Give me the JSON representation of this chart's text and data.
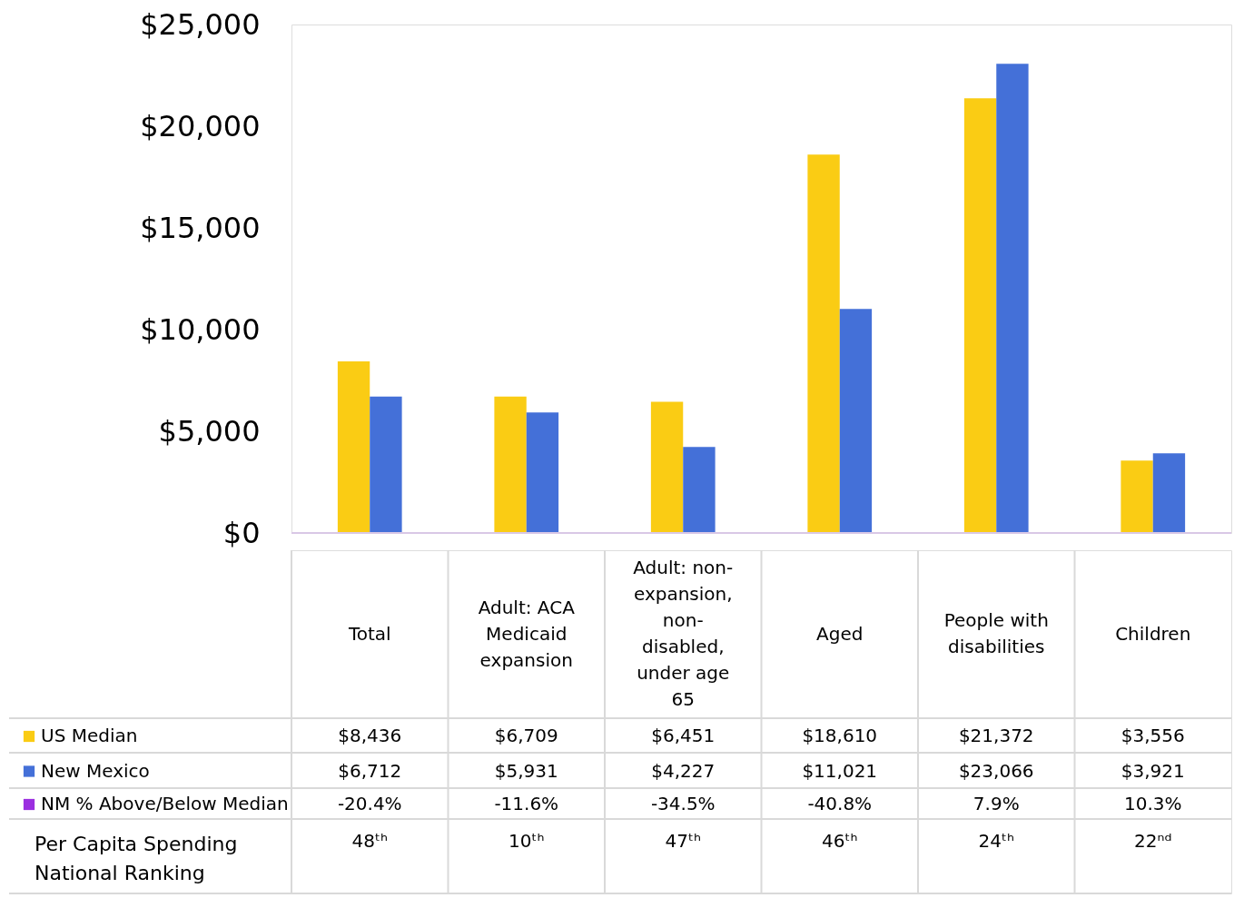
{
  "chart_data": {
    "type": "bar",
    "categories": [
      "Total",
      "Adult: ACA Medicaid expansion",
      "Adult: non-expansion, non-disabled, under age 65",
      "Aged",
      "People with disabilities",
      "Children"
    ],
    "series": [
      {
        "name": "US Median",
        "color": "#facc14",
        "values": [
          8436,
          6709,
          6451,
          18610,
          21372,
          3556
        ],
        "value_labels": [
          "$8,436",
          "$6,709",
          "$6,451",
          "$18,610",
          "$21,372",
          "$3,556"
        ]
      },
      {
        "name": "New Mexico",
        "color": "#4470d8",
        "values": [
          6712,
          5931,
          4227,
          11021,
          23066,
          3921
        ],
        "value_labels": [
          "$6,712",
          "$5,931",
          "$4,227",
          "$11,021",
          "$23,066",
          "$3,921"
        ]
      },
      {
        "name": "NM % Above/Below Median",
        "color": "#9b2fe0",
        "values": [
          null,
          null,
          null,
          null,
          null,
          null
        ],
        "value_labels": [
          "-20.4%",
          "-11.6%",
          "-34.5%",
          "-40.8%",
          "7.9%",
          "10.3%"
        ]
      }
    ],
    "ylim": [
      0,
      25000
    ],
    "yticks": [
      {
        "value": 0,
        "label": "$0"
      },
      {
        "value": 5000,
        "label": "$5,000"
      },
      {
        "value": 10000,
        "label": "$10,000"
      },
      {
        "value": 15000,
        "label": "$15,000"
      },
      {
        "value": 20000,
        "label": "$20,000"
      },
      {
        "value": 25000,
        "label": "$25,000"
      }
    ],
    "grid": false,
    "legend": "bottom left",
    "annotations": [
      "Per Capita Spending National Ranking",
      "48ᵗʰ",
      "10ᵗʰ",
      "47ᵗʰ",
      "46ᵗʰ",
      "24ᵗʰ",
      "22ⁿᵈ"
    ]
  }
}
